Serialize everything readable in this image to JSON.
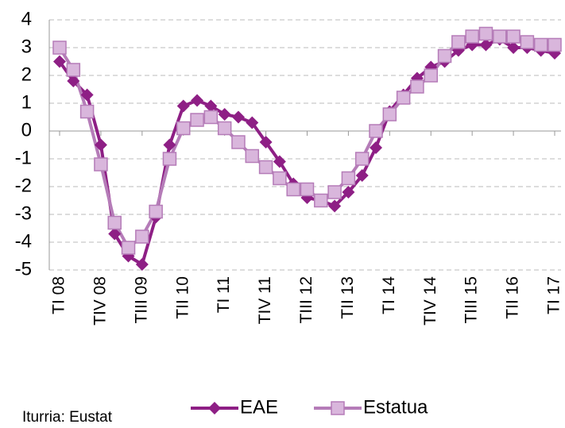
{
  "chart_data": {
    "type": "line",
    "categories": [
      "TI 08",
      null,
      null,
      "TIV 08",
      null,
      null,
      "TIII 09",
      null,
      null,
      "TII 10",
      null,
      null,
      "TI 11",
      null,
      null,
      "TIV 11",
      null,
      null,
      "TIII 12",
      null,
      null,
      "TII 13",
      null,
      null,
      "TI 14",
      null,
      null,
      "TIV 14",
      null,
      null,
      "TIII 15",
      null,
      null,
      "TII 16",
      null,
      null,
      "TI 17"
    ],
    "series": [
      {
        "name": "EAE",
        "color": "#8e1f85",
        "marker": "diamond",
        "values": [
          2.5,
          1.8,
          1.3,
          -0.5,
          -3.7,
          -4.5,
          -4.8,
          -3.1,
          -0.5,
          0.9,
          1.1,
          0.9,
          0.6,
          0.5,
          0.3,
          -0.4,
          -1.1,
          -1.9,
          -2.4,
          -2.5,
          -2.7,
          -2.2,
          -1.6,
          -0.6,
          0.7,
          1.3,
          1.9,
          2.3,
          2.5,
          2.9,
          3.1,
          3.1,
          3.3,
          3.0,
          3.0,
          2.9,
          2.8
        ]
      },
      {
        "name": "Estatua",
        "color": "#b57cb8",
        "marker": "square",
        "values": [
          3.0,
          2.2,
          0.7,
          -1.2,
          -3.3,
          -4.2,
          -3.8,
          -2.9,
          -1.0,
          0.1,
          0.4,
          0.5,
          0.1,
          -0.4,
          -0.9,
          -1.3,
          -1.7,
          -2.1,
          -2.1,
          -2.5,
          -2.2,
          -1.7,
          -1.0,
          0.0,
          0.6,
          1.2,
          1.6,
          2.0,
          2.7,
          3.2,
          3.4,
          3.5,
          3.4,
          3.4,
          3.2,
          3.1,
          3.1
        ]
      }
    ],
    "ylim": [
      -5,
      4
    ],
    "yticks": [
      -5,
      -4,
      -3,
      -2,
      -1,
      0,
      1,
      2,
      3,
      4
    ],
    "grid": true,
    "legend": "bottom",
    "source": "Iturria: Eustat"
  }
}
